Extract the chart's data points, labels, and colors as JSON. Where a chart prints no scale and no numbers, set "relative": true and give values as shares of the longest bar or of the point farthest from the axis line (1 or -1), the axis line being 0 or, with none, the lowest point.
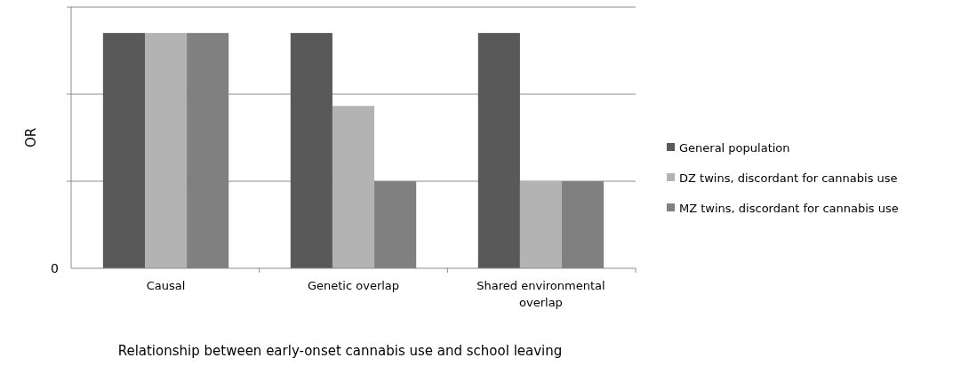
{
  "chart_data": {
    "type": "bar",
    "relative": true,
    "xlabel": "Relationship between early-onset cannabis use and school leaving",
    "ylabel": "OR",
    "categories": [
      "Causal",
      "Genetic overlap",
      "Shared environmental overlap"
    ],
    "series": [
      {
        "name": "General population",
        "color": "#595959",
        "values": [
          1,
          1,
          1
        ]
      },
      {
        "name": "DZ twins, discordant for cannabis use",
        "color": "#b3b3b3",
        "values": [
          1,
          0.69,
          0.37
        ]
      },
      {
        "name": "MZ twins, discordant for cannabis use",
        "color": "#808080",
        "values": [
          1,
          0.37,
          0.37
        ]
      }
    ],
    "annotations": [
      "0"
    ],
    "ref_lines": [
      {
        "axis": "y",
        "value": 0.37,
        "color": "#8c8c8c"
      },
      {
        "axis": "y",
        "value": 0.74,
        "color": "#8c8c8c"
      },
      {
        "axis": "y",
        "value": 1.11,
        "color": "#8c8c8c"
      }
    ],
    "legend": "right"
  }
}
